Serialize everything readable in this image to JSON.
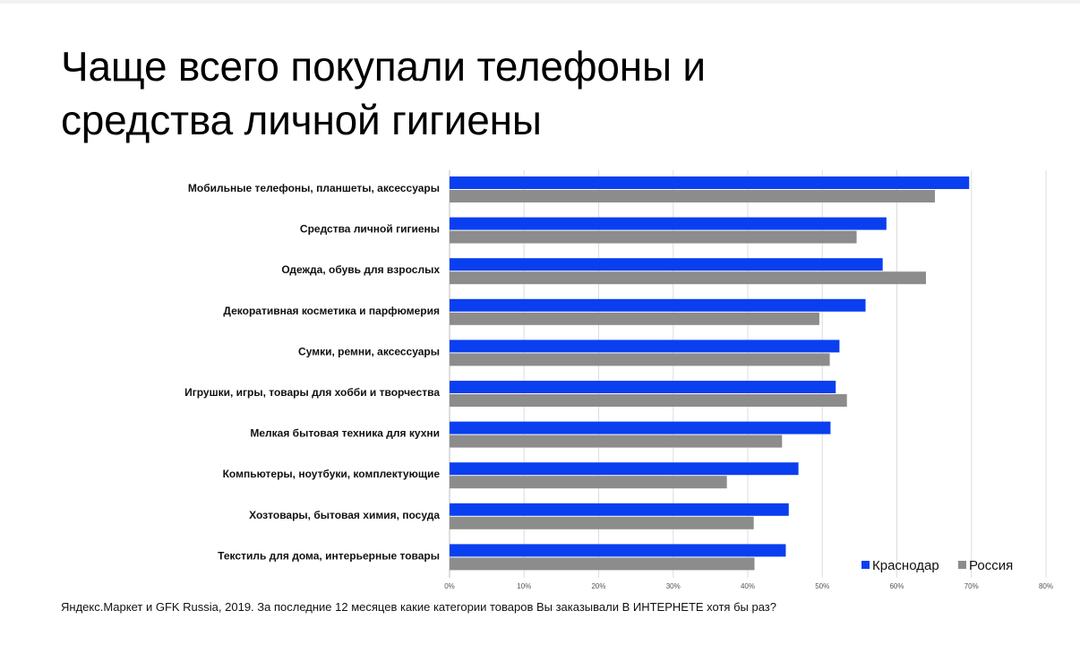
{
  "slide": {
    "title_line1": "Чаще всего покупали телефоны и",
    "title_line2": "средства личной гигиены",
    "footnote": "Яндекс.Маркет и GFK Russia, 2019. За последние 12 месяцев какие категории товаров Вы заказывали В ИНТЕРНЕТЕ хотя бы раз?"
  },
  "chart_data": {
    "type": "bar",
    "orientation": "horizontal",
    "categories": [
      "Мобильные телефоны, планшеты, аксессуары",
      "Средства личной гигиены",
      "Одежда, обувь для взрослых",
      "Декоративная косметика и парфюмерия",
      "Сумки, ремни, аксессуары",
      "Игрушки, игры, товары для хобби и творчества",
      "Мелкая бытовая техника для кухни",
      "Компьютеры, ноутбуки, комплектующие",
      "Хозтовары, бытовая химия, посуда",
      "Текстиль для дома, интерьерные товары"
    ],
    "series": [
      {
        "name": "Краснодар",
        "color": "#0a3ff0",
        "values": [
          69.7,
          58.6,
          58.1,
          55.8,
          52.3,
          51.8,
          51.1,
          46.8,
          45.5,
          45.1
        ]
      },
      {
        "name": "Россия",
        "color": "#8c8c8c",
        "values": [
          65.1,
          54.6,
          63.9,
          49.6,
          51.0,
          53.3,
          44.6,
          37.2,
          40.8,
          40.9
        ]
      }
    ],
    "xlim": [
      0,
      80
    ],
    "xticks": [
      "0%",
      "10%",
      "20%",
      "30%",
      "40%",
      "50%",
      "60%",
      "70%",
      "80%"
    ],
    "grid": true,
    "legend_position": "bottom-right",
    "xlabel": "",
    "ylabel": ""
  }
}
